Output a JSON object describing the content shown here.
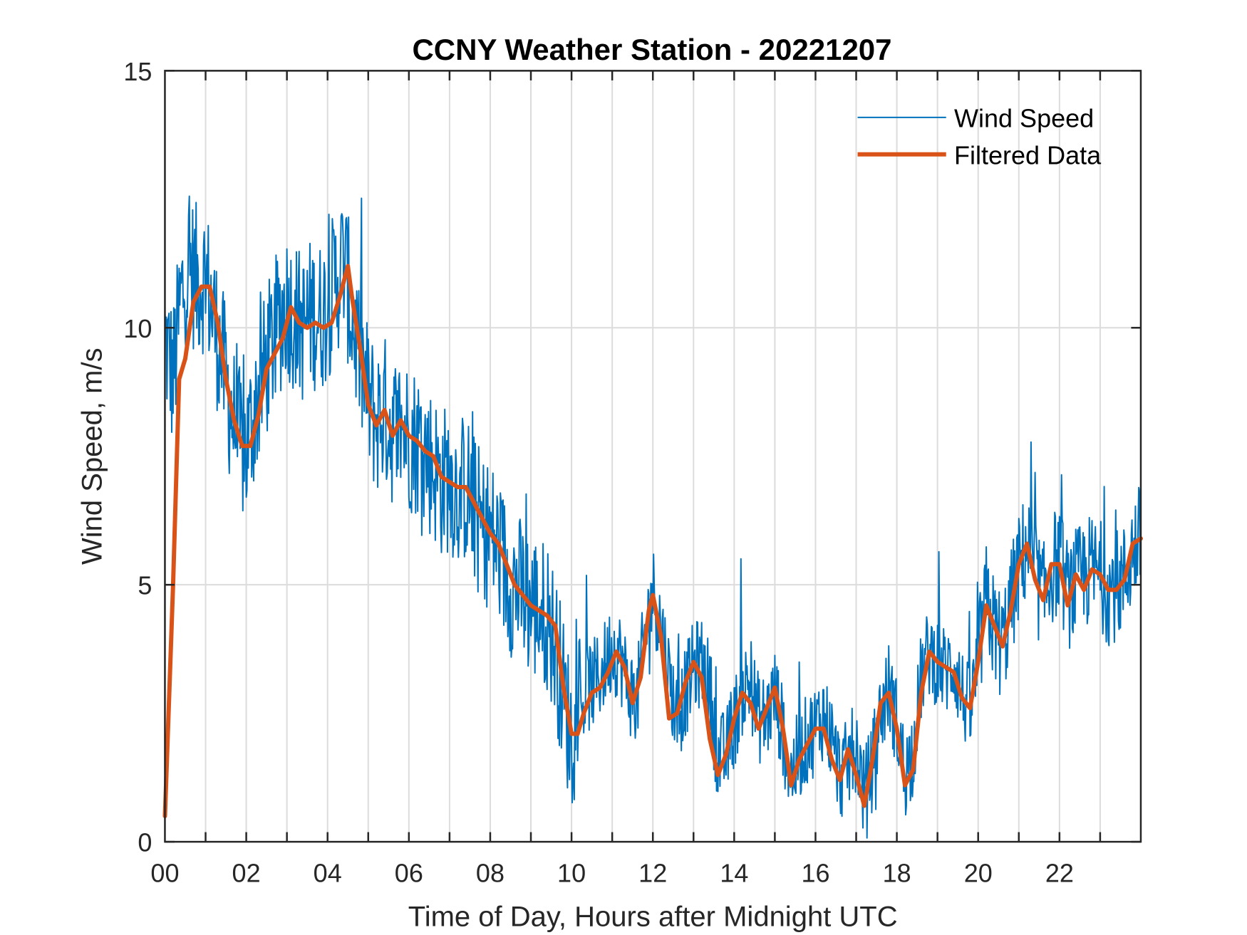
{
  "chart_data": {
    "type": "line",
    "title": "CCNY Weather Station - 20221207",
    "xlabel": "Time of Day, Hours after Midnight UTC",
    "ylabel": "Wind Speed, m/s",
    "xlim": [
      0,
      24
    ],
    "ylim": [
      0,
      15
    ],
    "xticks": [
      0,
      2,
      4,
      6,
      8,
      10,
      12,
      14,
      16,
      18,
      20,
      22
    ],
    "xtick_labels": [
      "00",
      "02",
      "04",
      "06",
      "08",
      "10",
      "12",
      "14",
      "16",
      "18",
      "20",
      "22"
    ],
    "yticks": [
      0,
      5,
      10,
      15
    ],
    "ytick_labels": [
      "0",
      "5",
      "10",
      "15"
    ],
    "grid": true,
    "legend_position": "top-right",
    "series": [
      {
        "name": "Wind Speed",
        "color": "#0072BD",
        "style": "thin noisy line",
        "x": [
          0.0,
          0.2,
          0.4,
          0.6,
          0.8,
          1.0,
          1.2,
          1.4,
          1.6,
          1.8,
          2.0,
          2.2,
          2.4,
          2.6,
          2.8,
          3.0,
          3.2,
          3.4,
          3.6,
          3.8,
          4.0,
          4.2,
          4.4,
          4.6,
          4.8,
          5.0,
          5.2,
          5.4,
          5.6,
          5.8,
          6.0,
          6.2,
          6.4,
          6.6,
          6.8,
          7.0,
          7.2,
          7.4,
          7.6,
          7.8,
          8.0,
          8.2,
          8.4,
          8.6,
          8.8,
          9.0,
          9.2,
          9.4,
          9.6,
          9.8,
          10.0,
          10.2,
          10.4,
          10.6,
          10.8,
          11.0,
          11.2,
          11.4,
          11.6,
          11.8,
          12.0,
          12.2,
          12.4,
          12.6,
          12.8,
          13.0,
          13.2,
          13.4,
          13.6,
          13.8,
          14.0,
          14.2,
          14.4,
          14.6,
          14.8,
          15.0,
          15.2,
          15.4,
          15.6,
          15.8,
          16.0,
          16.2,
          16.4,
          16.6,
          16.8,
          17.0,
          17.2,
          17.4,
          17.6,
          17.8,
          18.0,
          18.2,
          18.4,
          18.6,
          18.8,
          19.0,
          19.2,
          19.4,
          19.6,
          19.8,
          20.0,
          20.2,
          20.4,
          20.6,
          20.8,
          21.0,
          21.2,
          21.4,
          21.6,
          21.8,
          22.0,
          22.2,
          22.4,
          22.6,
          22.8,
          23.0,
          23.2,
          23.4,
          23.6,
          23.8,
          24.0
        ],
        "y": [
          9.8,
          9.0,
          10.6,
          11.2,
          10.9,
          11.0,
          10.2,
          9.4,
          8.5,
          7.8,
          7.6,
          8.4,
          9.0,
          9.6,
          10.1,
          10.5,
          10.2,
          10.0,
          10.3,
          10.2,
          10.4,
          10.9,
          11.3,
          10.2,
          9.4,
          8.6,
          8.2,
          8.4,
          8.0,
          8.1,
          7.9,
          7.8,
          7.6,
          7.3,
          7.0,
          7.1,
          6.8,
          6.9,
          6.5,
          6.1,
          6.0,
          5.7,
          5.2,
          5.0,
          4.8,
          4.6,
          4.5,
          4.4,
          3.8,
          2.9,
          2.0,
          2.6,
          3.0,
          3.1,
          3.4,
          3.8,
          3.6,
          3.0,
          2.7,
          4.0,
          4.9,
          4.2,
          3.2,
          2.4,
          2.9,
          3.4,
          3.5,
          3.0,
          1.6,
          1.7,
          2.3,
          2.9,
          3.1,
          2.4,
          2.4,
          2.9,
          2.1,
          1.3,
          1.7,
          2.0,
          2.2,
          2.5,
          2.0,
          1.3,
          1.5,
          1.9,
          0.9,
          1.5,
          2.5,
          3.0,
          2.3,
          1.3,
          1.8,
          3.2,
          3.7,
          3.5,
          3.3,
          3.5,
          2.9,
          2.5,
          3.5,
          4.7,
          4.1,
          3.8,
          4.6,
          5.3,
          5.8,
          5.2,
          4.7,
          5.3,
          5.5,
          4.8,
          5.0,
          5.2,
          5.3,
          5.2,
          4.9,
          5.0,
          5.1,
          5.7,
          5.9
        ]
      },
      {
        "name": "Filtered Data",
        "color": "#D95319",
        "style": "thick smooth line",
        "x": [
          0.0,
          0.2,
          0.35,
          0.5,
          0.7,
          0.9,
          1.1,
          1.3,
          1.5,
          1.7,
          1.9,
          2.1,
          2.3,
          2.5,
          2.7,
          2.9,
          3.1,
          3.3,
          3.5,
          3.7,
          3.9,
          4.1,
          4.3,
          4.5,
          4.6,
          4.8,
          5.0,
          5.2,
          5.4,
          5.6,
          5.8,
          6.0,
          6.2,
          6.4,
          6.6,
          6.8,
          7.0,
          7.2,
          7.4,
          7.6,
          7.8,
          8.0,
          8.2,
          8.4,
          8.6,
          8.8,
          9.0,
          9.2,
          9.4,
          9.6,
          9.8,
          10.0,
          10.15,
          10.3,
          10.5,
          10.7,
          10.9,
          11.1,
          11.3,
          11.5,
          11.7,
          11.9,
          12.0,
          12.2,
          12.4,
          12.6,
          12.8,
          13.0,
          13.2,
          13.4,
          13.6,
          13.8,
          14.0,
          14.2,
          14.4,
          14.6,
          14.8,
          15.0,
          15.2,
          15.4,
          15.6,
          15.8,
          16.0,
          16.2,
          16.4,
          16.6,
          16.8,
          17.0,
          17.2,
          17.4,
          17.6,
          17.8,
          18.0,
          18.2,
          18.4,
          18.6,
          18.8,
          19.0,
          19.2,
          19.4,
          19.6,
          19.8,
          20.0,
          20.2,
          20.4,
          20.6,
          20.8,
          21.0,
          21.2,
          21.4,
          21.6,
          21.8,
          22.0,
          22.2,
          22.4,
          22.6,
          22.8,
          23.0,
          23.2,
          23.4,
          23.6,
          23.8,
          24.0
        ],
        "y": [
          0.5,
          5.0,
          9.0,
          9.4,
          10.5,
          10.8,
          10.8,
          10.1,
          9.0,
          8.2,
          7.7,
          7.7,
          8.3,
          9.2,
          9.5,
          9.8,
          10.4,
          10.1,
          10.0,
          10.1,
          10.0,
          10.1,
          10.6,
          11.2,
          10.6,
          9.6,
          8.5,
          8.1,
          8.4,
          7.9,
          8.2,
          7.9,
          7.8,
          7.6,
          7.5,
          7.1,
          7.0,
          6.9,
          6.9,
          6.6,
          6.3,
          6.0,
          5.8,
          5.4,
          5.0,
          4.8,
          4.6,
          4.5,
          4.4,
          4.2,
          3.0,
          2.1,
          2.1,
          2.5,
          2.9,
          3.0,
          3.3,
          3.7,
          3.4,
          2.7,
          3.2,
          4.5,
          4.8,
          4.0,
          2.4,
          2.5,
          3.1,
          3.5,
          3.2,
          2.0,
          1.3,
          1.7,
          2.4,
          2.9,
          2.7,
          2.2,
          2.6,
          3.0,
          2.2,
          1.1,
          1.6,
          1.9,
          2.2,
          2.2,
          1.6,
          1.2,
          1.8,
          1.3,
          0.7,
          1.6,
          2.7,
          2.9,
          2.2,
          1.1,
          1.4,
          2.9,
          3.7,
          3.5,
          3.4,
          3.3,
          2.8,
          2.6,
          3.5,
          4.6,
          4.2,
          3.8,
          4.5,
          5.4,
          5.8,
          5.1,
          4.7,
          5.4,
          5.4,
          4.6,
          5.2,
          4.9,
          5.3,
          5.2,
          4.9,
          4.9,
          5.1,
          5.8,
          5.9
        ]
      }
    ]
  }
}
